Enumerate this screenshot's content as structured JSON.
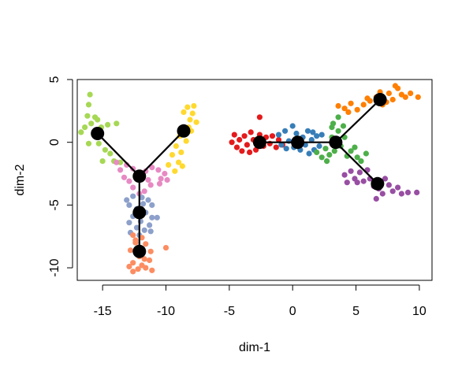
{
  "chart_data": {
    "type": "scatter",
    "xlabel": "dim-1",
    "ylabel": "dim-2",
    "xlim": [
      -17,
      11
    ],
    "ylim": [
      -11,
      5
    ],
    "xticks": [
      -15,
      -10,
      -5,
      0,
      5,
      10
    ],
    "xtick_labels": [
      "-15",
      "-10",
      "-5",
      "0",
      "5",
      "10"
    ],
    "yticks": [
      -10,
      -5,
      0,
      5
    ],
    "ytick_labels": [
      "-10",
      "-5",
      "0",
      "5"
    ],
    "grid": false,
    "series": [
      {
        "name": "light-green",
        "color": "#a6d854",
        "points": [
          [
            -16.0,
            3.8
          ],
          [
            -16.1,
            3.0
          ],
          [
            -15.6,
            2.0
          ],
          [
            -16.2,
            2.1
          ],
          [
            -15.9,
            1.5
          ],
          [
            -16.4,
            1.2
          ],
          [
            -15.4,
            1.8
          ],
          [
            -15.1,
            1.2
          ],
          [
            -14.6,
            1.4
          ],
          [
            -15.7,
            0.6
          ],
          [
            -16.1,
            -0.1
          ],
          [
            -15.3,
            -0.1
          ],
          [
            -14.8,
            -0.6
          ],
          [
            -14.4,
            -0.9
          ],
          [
            -15.0,
            -1.5
          ],
          [
            -14.1,
            -1.5
          ],
          [
            -13.6,
            -1.6
          ],
          [
            -15.2,
            1.0
          ],
          [
            -16.7,
            0.8
          ],
          [
            -13.9,
            1.5
          ]
        ]
      },
      {
        "name": "yellow",
        "color": "#ffd92f",
        "points": [
          [
            -8.3,
            2.8
          ],
          [
            -7.9,
            2.3
          ],
          [
            -8.6,
            2.4
          ],
          [
            -8.1,
            1.8
          ],
          [
            -7.6,
            1.6
          ],
          [
            -8.7,
            1.1
          ],
          [
            -8.0,
            0.9
          ],
          [
            -8.9,
            0.5
          ],
          [
            -8.4,
            0.1
          ],
          [
            -9.2,
            -0.3
          ],
          [
            -8.8,
            -0.8
          ],
          [
            -9.5,
            -1.0
          ],
          [
            -9.0,
            -1.6
          ],
          [
            -8.7,
            -1.9
          ],
          [
            -9.3,
            -2.3
          ],
          [
            -9.8,
            -1.8
          ],
          [
            -7.8,
            2.9
          ],
          [
            -8.2,
            1.2
          ]
        ]
      },
      {
        "name": "pink",
        "color": "#e78ac3",
        "points": [
          [
            -13.9,
            -1.6
          ],
          [
            -13.1,
            -1.8
          ],
          [
            -12.6,
            -2.1
          ],
          [
            -12.3,
            -2.5
          ],
          [
            -11.6,
            -2.3
          ],
          [
            -11.1,
            -2.0
          ],
          [
            -10.6,
            -2.2
          ],
          [
            -10.1,
            -2.5
          ],
          [
            -9.9,
            -3.0
          ],
          [
            -10.4,
            -2.9
          ],
          [
            -11.4,
            -3.0
          ],
          [
            -12.9,
            -3.1
          ],
          [
            -13.3,
            -2.8
          ],
          [
            -12.6,
            -3.6
          ],
          [
            -11.7,
            -3.9
          ],
          [
            -12.1,
            -4.1
          ],
          [
            -11.2,
            -3.4
          ],
          [
            -10.5,
            -3.3
          ],
          [
            -13.6,
            -2.2
          ]
        ]
      },
      {
        "name": "blue-grey",
        "color": "#8da0cb",
        "points": [
          [
            -12.6,
            -4.3
          ],
          [
            -11.9,
            -4.4
          ],
          [
            -11.4,
            -4.6
          ],
          [
            -11.1,
            -5.0
          ],
          [
            -12.9,
            -5.0
          ],
          [
            -12.3,
            -5.3
          ],
          [
            -11.6,
            -5.6
          ],
          [
            -11.1,
            -6.0
          ],
          [
            -12.6,
            -5.9
          ],
          [
            -12.0,
            -6.3
          ],
          [
            -11.3,
            -6.6
          ],
          [
            -12.3,
            -6.8
          ],
          [
            -11.7,
            -7.0
          ],
          [
            -12.8,
            -7.2
          ],
          [
            -11.2,
            -7.1
          ],
          [
            -12.1,
            -7.4
          ],
          [
            -10.7,
            -6.0
          ],
          [
            -12.9,
            -6.4
          ],
          [
            -11.8,
            -4.9
          ],
          [
            -13.1,
            -4.6
          ]
        ]
      },
      {
        "name": "salmon",
        "color": "#fc8d62",
        "points": [
          [
            -12.6,
            -7.4
          ],
          [
            -11.9,
            -7.6
          ],
          [
            -12.4,
            -8.0
          ],
          [
            -11.6,
            -8.1
          ],
          [
            -12.8,
            -8.6
          ],
          [
            -12.1,
            -9.1
          ],
          [
            -11.7,
            -9.3
          ],
          [
            -11.3,
            -9.4
          ],
          [
            -12.6,
            -9.6
          ],
          [
            -12.9,
            -9.9
          ],
          [
            -12.2,
            -10.1
          ],
          [
            -11.6,
            -10.0
          ],
          [
            -11.1,
            -10.2
          ],
          [
            -12.6,
            -10.3
          ],
          [
            -11.9,
            -9.8
          ],
          [
            -12.4,
            -7.8
          ],
          [
            -11.2,
            -8.7
          ],
          [
            -10.0,
            -8.4
          ],
          [
            -12.0,
            -8.4
          ]
        ]
      },
      {
        "name": "red",
        "color": "#e41a1c",
        "points": [
          [
            -4.6,
            0.6
          ],
          [
            -4.2,
            0.2
          ],
          [
            -4.4,
            -0.4
          ],
          [
            -3.8,
            0.5
          ],
          [
            -3.6,
            -0.2
          ],
          [
            -3.3,
            0.8
          ],
          [
            -3.1,
            0.2
          ],
          [
            -2.9,
            -0.6
          ],
          [
            -2.6,
            0.6
          ],
          [
            -2.3,
            -0.3
          ],
          [
            -2.1,
            0.4
          ],
          [
            -1.8,
            -0.1
          ],
          [
            -1.6,
            0.5
          ],
          [
            -1.3,
            -0.4
          ],
          [
            -1.1,
            0.2
          ],
          [
            -0.8,
            -0.2
          ],
          [
            -4.0,
            -0.7
          ],
          [
            -2.6,
            2.0
          ],
          [
            -4.8,
            0.0
          ],
          [
            -3.4,
            -0.8
          ]
        ]
      },
      {
        "name": "steel-blue",
        "color": "#377eb8",
        "points": [
          [
            -1.1,
            0.6
          ],
          [
            -0.6,
            0.9
          ],
          [
            -0.3,
            0.1
          ],
          [
            0.0,
            1.3
          ],
          [
            0.1,
            -0.4
          ],
          [
            0.3,
            0.7
          ],
          [
            0.6,
            -0.6
          ],
          [
            0.8,
            0.4
          ],
          [
            1.0,
            -0.2
          ],
          [
            1.2,
            0.9
          ],
          [
            1.5,
            0.2
          ],
          [
            1.7,
            -0.6
          ],
          [
            1.9,
            0.5
          ],
          [
            2.1,
            -0.3
          ],
          [
            -0.5,
            -0.5
          ],
          [
            0.4,
            0.0
          ],
          [
            1.3,
            -0.9
          ],
          [
            2.3,
            0.6
          ],
          [
            -0.9,
            -0.2
          ],
          [
            1.6,
            0.8
          ]
        ]
      },
      {
        "name": "green",
        "color": "#4daf4a",
        "points": [
          [
            1.9,
            -0.8
          ],
          [
            2.3,
            -1.2
          ],
          [
            2.6,
            -0.5
          ],
          [
            2.9,
            -1.0
          ],
          [
            3.1,
            0.4
          ],
          [
            3.3,
            -0.7
          ],
          [
            3.6,
            0.9
          ],
          [
            3.8,
            -0.3
          ],
          [
            4.1,
            0.4
          ],
          [
            4.3,
            -1.1
          ],
          [
            4.6,
            -0.7
          ],
          [
            4.9,
            -0.4
          ],
          [
            5.1,
            -1.2
          ],
          [
            5.4,
            -1.5
          ],
          [
            3.2,
            1.5
          ],
          [
            3.6,
            2.0
          ],
          [
            3.1,
            1.2
          ],
          [
            2.7,
            -1.5
          ],
          [
            4.0,
            1.3
          ],
          [
            5.8,
            -0.9
          ]
        ]
      },
      {
        "name": "orange",
        "color": "#ff7f00",
        "points": [
          [
            3.6,
            2.9
          ],
          [
            4.1,
            2.7
          ],
          [
            4.6,
            3.1
          ],
          [
            5.1,
            2.6
          ],
          [
            5.6,
            3.0
          ],
          [
            6.1,
            3.3
          ],
          [
            6.6,
            3.6
          ],
          [
            7.1,
            3.0
          ],
          [
            7.6,
            3.9
          ],
          [
            7.9,
            3.4
          ],
          [
            8.3,
            4.3
          ],
          [
            8.6,
            3.8
          ],
          [
            8.9,
            3.6
          ],
          [
            9.3,
            3.9
          ],
          [
            9.9,
            3.6
          ],
          [
            8.1,
            4.5
          ],
          [
            6.9,
            4.0
          ],
          [
            5.9,
            3.5
          ],
          [
            4.4,
            2.4
          ],
          [
            7.4,
            3.2
          ]
        ]
      },
      {
        "name": "purple",
        "color": "#984ea3",
        "points": [
          [
            4.1,
            -2.6
          ],
          [
            4.6,
            -2.3
          ],
          [
            4.9,
            -2.9
          ],
          [
            5.3,
            -2.4
          ],
          [
            5.6,
            -3.1
          ],
          [
            6.1,
            -2.9
          ],
          [
            6.4,
            -3.5
          ],
          [
            6.8,
            -3.7
          ],
          [
            7.1,
            -4.1
          ],
          [
            7.6,
            -3.4
          ],
          [
            7.9,
            -3.9
          ],
          [
            8.3,
            -3.6
          ],
          [
            8.6,
            -4.1
          ],
          [
            9.1,
            -4.0
          ],
          [
            9.8,
            -4.0
          ],
          [
            6.6,
            -4.5
          ],
          [
            5.1,
            -3.2
          ],
          [
            5.9,
            -2.2
          ],
          [
            4.3,
            -3.2
          ],
          [
            7.3,
            -2.9
          ]
        ]
      }
    ],
    "trajectory_nodes": [
      [
        -15.4,
        0.7
      ],
      [
        -8.6,
        0.9
      ],
      [
        -12.1,
        -2.7
      ],
      [
        -12.1,
        -5.6
      ],
      [
        -12.1,
        -8.7
      ],
      [
        -2.6,
        0.0
      ],
      [
        0.4,
        0.0
      ],
      [
        3.4,
        0.0
      ],
      [
        6.9,
        3.4
      ],
      [
        6.7,
        -3.3
      ]
    ],
    "trajectory_edges": [
      [
        0,
        2
      ],
      [
        1,
        2
      ],
      [
        2,
        3
      ],
      [
        3,
        4
      ],
      [
        5,
        6
      ],
      [
        6,
        7
      ],
      [
        7,
        8
      ],
      [
        7,
        9
      ]
    ]
  }
}
